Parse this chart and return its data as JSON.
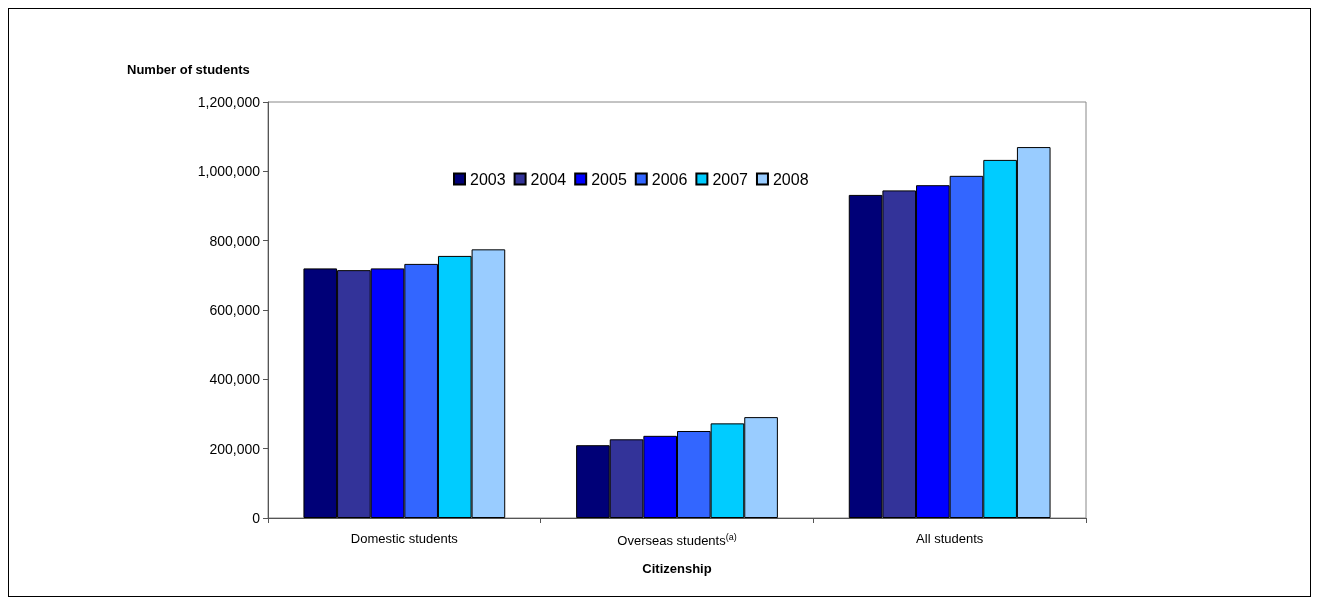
{
  "chart_data": {
    "type": "bar",
    "ylabel": "Number of students",
    "xlabel": "Citizenship",
    "categories": [
      "Domestic students",
      "Overseas students$^{(a)}$",
      "All students"
    ],
    "series": [
      {
        "name": "2003",
        "color": "#000077",
        "values": [
          720000,
          210000,
          932000
        ]
      },
      {
        "name": "2004",
        "color": "#333399",
        "values": [
          715000,
          227000,
          945000
        ]
      },
      {
        "name": "2005",
        "color": "#0000ff",
        "values": [
          720000,
          237000,
          960000
        ]
      },
      {
        "name": "2006",
        "color": "#3366ff",
        "values": [
          733000,
          251000,
          987000
        ]
      },
      {
        "name": "2007",
        "color": "#00ccff",
        "values": [
          756000,
          273000,
          1033000
        ]
      },
      {
        "name": "2008",
        "color": "#99ccff",
        "values": [
          775000,
          291000,
          1070000
        ]
      }
    ],
    "ylim": [
      0,
      1200000
    ],
    "yticks": [
      0,
      {
        "value": 200000,
        "label": "200,000"
      },
      {
        "value": 400000,
        "label": "400,000"
      },
      {
        "value": 600000,
        "label": "600,000"
      },
      {
        "value": 800000,
        "label": "800,000"
      },
      {
        "value": 1000000,
        "label": "1,000,000"
      },
      {
        "value": 1200000,
        "label": "1,200,000"
      }
    ],
    "grid": false,
    "legend": "top"
  }
}
